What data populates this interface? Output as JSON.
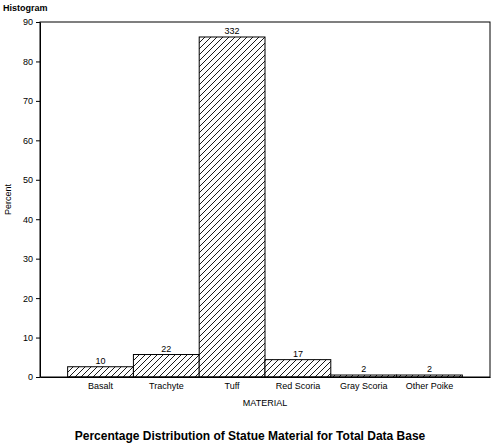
{
  "chart_data": {
    "type": "bar",
    "title": "Percentage Distribution of Statue Material for Total Data Base",
    "annotation": "Histogram",
    "x_label": "MATERIAL",
    "y_label": "Percent",
    "categories": [
      "Basalt",
      "Trachyte",
      "Tuff",
      "Red Scoria",
      "Gray Scoria",
      "Other Poike"
    ],
    "values": [
      2.6,
      5.7,
      86.2,
      4.4,
      0.5,
      0.5
    ],
    "counts": [
      10,
      22,
      332,
      17,
      2,
      2
    ],
    "color": "#000000",
    "ylim": [
      0,
      90
    ],
    "yticks": [
      0,
      10,
      20,
      30,
      40,
      50,
      60,
      70,
      80,
      90
    ],
    "grid": false
  }
}
